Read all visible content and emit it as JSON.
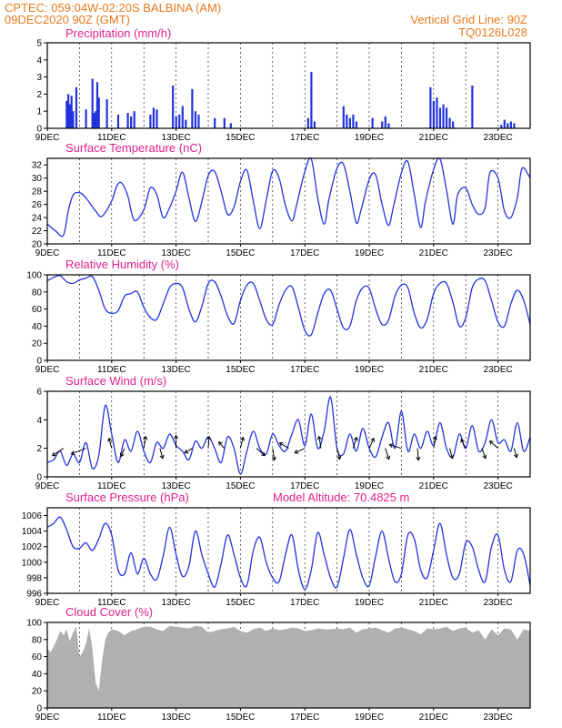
{
  "header": {
    "line1": "CPTEC:   059:04W-02:20S   BALBINA (AM)",
    "line2": "09DEC2020 90Z (GMT)",
    "vgrid": "Vertical Grid Line: 90Z",
    "code": "TQ0126L028"
  },
  "colors": {
    "header": "#e87a1c",
    "title": "#e0208c",
    "line": "#2233dd",
    "cloud": "#b0b0b0"
  },
  "chart_data": [
    {
      "id": "precip",
      "type": "bar",
      "title": "Precipitation (mm/h)",
      "ylim": [
        0,
        5
      ],
      "yticks": [
        0,
        1,
        2,
        3,
        4,
        5
      ],
      "x_unit": "days since 09DEC2020 00Z",
      "x": [
        0.6,
        0.65,
        0.7,
        0.75,
        0.8,
        0.9,
        1.2,
        1.4,
        1.45,
        1.5,
        1.55,
        1.6,
        1.85,
        2.2,
        2.5,
        2.6,
        2.7,
        3.2,
        3.3,
        3.4,
        3.9,
        4.0,
        4.1,
        4.2,
        4.3,
        4.5,
        4.6,
        4.7,
        5.2,
        5.5,
        5.7,
        8.1,
        8.2,
        8.3,
        9.2,
        9.3,
        9.4,
        9.5,
        9.6,
        10.1,
        10.4,
        10.5,
        10.6,
        11.9,
        12.0,
        12.1,
        12.2,
        12.3,
        12.4,
        12.5,
        12.6,
        13.2,
        14.1,
        14.2,
        14.3,
        14.4,
        14.5
      ],
      "values": [
        1.6,
        2.0,
        1.4,
        1.9,
        1.0,
        2.4,
        1.1,
        2.9,
        0.9,
        1.0,
        2.7,
        1.8,
        1.7,
        0.8,
        0.9,
        0.7,
        1.0,
        0.8,
        1.2,
        1.1,
        2.5,
        0.7,
        0.8,
        1.3,
        0.5,
        2.3,
        1.0,
        0.8,
        0.6,
        0.6,
        0.3,
        0.6,
        3.3,
        0.4,
        1.3,
        0.8,
        0.6,
        0.8,
        0.4,
        0.6,
        0.4,
        0.7,
        0.3,
        2.4,
        1.6,
        1.8,
        1.2,
        1.4,
        1.2,
        0.6,
        0.4,
        2.5,
        0.2,
        0.5,
        0.3,
        0.4,
        0.3
      ],
      "xticks": [
        "9DEC",
        "11DEC",
        "13DEC",
        "15DEC",
        "17DEC",
        "19DEC",
        "21DEC",
        "23DEC"
      ]
    },
    {
      "id": "temp",
      "type": "line",
      "title": "Surface Temperature (nC)",
      "ylim": [
        20,
        33
      ],
      "yticks": [
        20,
        22,
        24,
        26,
        28,
        30,
        32
      ],
      "x_unit": "days since 09DEC2020 00Z",
      "x": [
        0.0,
        0.25,
        0.5,
        0.65,
        0.8,
        1.0,
        1.2,
        1.5,
        1.7,
        2.0,
        2.15,
        2.3,
        2.5,
        2.7,
        3.0,
        3.2,
        3.4,
        3.6,
        3.8,
        4.0,
        4.2,
        4.4,
        4.6,
        4.8,
        5.0,
        5.2,
        5.4,
        5.6,
        5.8,
        6.0,
        6.2,
        6.4,
        6.6,
        6.8,
        7.0,
        7.2,
        7.4,
        7.6,
        7.75,
        8.0,
        8.2,
        8.4,
        8.6,
        8.75,
        9.0,
        9.2,
        9.4,
        9.6,
        9.75,
        10.0,
        10.2,
        10.4,
        10.6,
        10.75,
        11.0,
        11.2,
        11.4,
        11.6,
        11.75,
        12.0,
        12.2,
        12.4,
        12.6,
        12.75,
        13.0,
        13.2,
        13.4,
        13.6,
        13.75,
        14.0,
        14.2,
        14.4,
        14.6,
        14.75,
        15.0
      ],
      "values": [
        23.0,
        22.0,
        21.3,
        25.0,
        27.4,
        27.8,
        27.0,
        25.0,
        24.2,
        26.5,
        28.7,
        29.3,
        27.3,
        23.6,
        25.2,
        28.5,
        27.5,
        24.0,
        25.5,
        28.0,
        30.9,
        27.0,
        23.4,
        26.4,
        30.4,
        31.0,
        28.0,
        24.5,
        25.6,
        29.5,
        31.2,
        26.5,
        22.3,
        26.6,
        31.1,
        30.0,
        25.8,
        23.5,
        26.0,
        31.0,
        32.9,
        27.0,
        23.0,
        26.8,
        31.5,
        32.1,
        28.0,
        23.2,
        25.2,
        29.8,
        30.5,
        26.0,
        22.8,
        25.6,
        30.8,
        32.5,
        27.5,
        22.5,
        26.5,
        31.3,
        32.9,
        28.2,
        23.0,
        27.5,
        28.5,
        26.0,
        24.5,
        25.5,
        30.8,
        30.0,
        25.0,
        24.0,
        27.0,
        31.5,
        30.0
      ],
      "xticks": [
        "9DEC",
        "11DEC",
        "13DEC",
        "15DEC",
        "17DEC",
        "19DEC",
        "21DEC",
        "23DEC"
      ]
    },
    {
      "id": "rh",
      "type": "line",
      "title": "Relative Humidity (%)",
      "ylim": [
        0,
        100
      ],
      "yticks": [
        0,
        20,
        40,
        60,
        80,
        100
      ],
      "x_unit": "days since 09DEC2020 00Z",
      "x": [
        0.0,
        0.2,
        0.4,
        0.6,
        0.8,
        1.0,
        1.2,
        1.4,
        1.6,
        1.8,
        2.0,
        2.2,
        2.4,
        2.6,
        2.8,
        3.0,
        3.2,
        3.4,
        3.6,
        3.8,
        4.0,
        4.2,
        4.4,
        4.6,
        4.8,
        5.0,
        5.2,
        5.4,
        5.6,
        5.8,
        6.0,
        6.2,
        6.4,
        6.6,
        6.8,
        7.0,
        7.2,
        7.4,
        7.6,
        7.8,
        8.0,
        8.2,
        8.4,
        8.6,
        8.8,
        9.0,
        9.2,
        9.4,
        9.6,
        9.8,
        10.0,
        10.2,
        10.4,
        10.6,
        10.8,
        11.0,
        11.2,
        11.4,
        11.6,
        11.8,
        12.0,
        12.2,
        12.4,
        12.6,
        12.8,
        13.0,
        13.2,
        13.4,
        13.6,
        13.8,
        14.0,
        14.2,
        14.4,
        14.6,
        14.8,
        15.0
      ],
      "values": [
        93,
        97,
        99,
        92,
        90,
        94,
        96,
        98,
        82,
        60,
        55,
        58,
        75,
        78,
        80,
        62,
        50,
        48,
        66,
        85,
        90,
        85,
        60,
        45,
        63,
        90,
        92,
        75,
        52,
        43,
        70,
        88,
        90,
        70,
        48,
        42,
        65,
        82,
        86,
        62,
        35,
        30,
        55,
        78,
        82,
        60,
        38,
        40,
        70,
        85,
        84,
        60,
        42,
        47,
        75,
        88,
        85,
        55,
        38,
        48,
        78,
        90,
        90,
        68,
        40,
        50,
        85,
        95,
        93,
        70,
        45,
        40,
        66,
        82,
        70,
        42
      ],
      "xticks": [
        "9DEC",
        "11DEC",
        "13DEC",
        "15DEC",
        "17DEC",
        "19DEC",
        "21DEC",
        "23DEC"
      ]
    },
    {
      "id": "wind",
      "type": "line",
      "title": "Surface Wind (m/s)",
      "ylim": [
        0,
        6
      ],
      "yticks": [
        0,
        2,
        4,
        6
      ],
      "x_unit": "days since 09DEC2020 00Z",
      "x": [
        0.0,
        0.2,
        0.4,
        0.6,
        0.8,
        1.0,
        1.2,
        1.4,
        1.6,
        1.8,
        2.0,
        2.2,
        2.4,
        2.6,
        2.8,
        3.0,
        3.2,
        3.4,
        3.6,
        3.8,
        4.0,
        4.2,
        4.4,
        4.6,
        4.8,
        5.0,
        5.2,
        5.4,
        5.6,
        5.8,
        6.0,
        6.2,
        6.4,
        6.6,
        6.8,
        7.0,
        7.2,
        7.4,
        7.6,
        7.8,
        8.0,
        8.2,
        8.4,
        8.6,
        8.8,
        9.0,
        9.2,
        9.4,
        9.6,
        9.8,
        10.0,
        10.2,
        10.4,
        10.6,
        10.8,
        11.0,
        11.2,
        11.4,
        11.6,
        11.8,
        12.0,
        12.2,
        12.4,
        12.6,
        12.8,
        13.0,
        13.2,
        13.4,
        13.6,
        13.8,
        14.0,
        14.2,
        14.4,
        14.6,
        14.8,
        15.0
      ],
      "values": [
        1.0,
        1.2,
        1.8,
        0.8,
        1.6,
        1.0,
        2.4,
        0.6,
        1.5,
        5.0,
        3.0,
        1.0,
        2.6,
        1.8,
        3.2,
        1.8,
        1.0,
        2.4,
        2.0,
        3.0,
        2.2,
        1.8,
        1.2,
        2.5,
        2.0,
        2.8,
        2.0,
        1.0,
        2.8,
        2.0,
        0.2,
        1.8,
        3.2,
        2.0,
        1.6,
        3.0,
        2.2,
        1.8,
        3.0,
        4.0,
        2.2,
        4.4,
        2.0,
        3.2,
        5.6,
        2.0,
        1.6,
        3.0,
        1.8,
        3.4,
        2.0,
        1.4,
        2.8,
        3.8,
        2.0,
        4.6,
        1.8,
        3.0,
        2.0,
        3.2,
        2.2,
        3.8,
        2.0,
        1.4,
        3.0,
        2.0,
        3.6,
        1.8,
        2.4,
        4.0,
        2.4,
        2.6,
        1.8,
        3.8,
        1.8,
        2.8
      ],
      "vectors": [
        {
          "t": 0.5,
          "u": -1.2,
          "v": -0.8
        },
        {
          "t": 1.2,
          "u": -1.6,
          "v": -0.6
        },
        {
          "t": 2.0,
          "u": -0.3,
          "v": 1.1
        },
        {
          "t": 2.4,
          "u": -0.4,
          "v": -0.9
        },
        {
          "t": 3.0,
          "u": 0.2,
          "v": 1.3
        },
        {
          "t": 3.5,
          "u": 0.3,
          "v": -1.1
        },
        {
          "t": 4.0,
          "u": 0.0,
          "v": 1.4
        },
        {
          "t": 4.5,
          "u": -0.8,
          "v": -0.5
        },
        {
          "t": 5.0,
          "u": 0.1,
          "v": 1.3
        },
        {
          "t": 5.5,
          "u": -0.6,
          "v": 0.7
        },
        {
          "t": 6.0,
          "u": 0.3,
          "v": 1.2
        },
        {
          "t": 6.5,
          "u": 0.9,
          "v": -0.8
        },
        {
          "t": 7.0,
          "u": 0.2,
          "v": -1.3
        },
        {
          "t": 7.5,
          "u": -1.0,
          "v": 0.6
        },
        {
          "t": 8.0,
          "u": -1.1,
          "v": -0.5
        },
        {
          "t": 8.5,
          "u": -0.2,
          "v": 1.3
        },
        {
          "t": 9.0,
          "u": 0.3,
          "v": -1.2
        },
        {
          "t": 9.5,
          "u": 0.4,
          "v": 1.2
        },
        {
          "t": 10.0,
          "u": 0.5,
          "v": 1.1
        },
        {
          "t": 10.5,
          "u": 0.4,
          "v": -1.2
        },
        {
          "t": 11.0,
          "u": -1.3,
          "v": 0.4
        },
        {
          "t": 11.5,
          "u": 0.1,
          "v": -1.3
        },
        {
          "t": 12.0,
          "u": 0.2,
          "v": 1.3
        },
        {
          "t": 12.5,
          "u": 0.3,
          "v": -1.1
        },
        {
          "t": 13.0,
          "u": -0.5,
          "v": 1.0
        },
        {
          "t": 13.5,
          "u": 0.4,
          "v": -1.1
        },
        {
          "t": 14.0,
          "u": -0.9,
          "v": 0.8
        },
        {
          "t": 14.5,
          "u": 0.3,
          "v": -1.0
        }
      ],
      "xticks": [
        "9DEC",
        "11DEC",
        "13DEC",
        "15DEC",
        "17DEC",
        "19DEC",
        "21DEC",
        "23DEC"
      ]
    },
    {
      "id": "pres",
      "type": "line",
      "title": "Surface Pressure (hPa)",
      "annotation": "Model Altitude: 70.4825 m",
      "ylim": [
        996,
        1007
      ],
      "yticks": [
        996,
        998,
        1000,
        1002,
        1004,
        1006
      ],
      "x_unit": "days since 09DEC2020 00Z",
      "x": [
        0.0,
        0.2,
        0.4,
        0.6,
        0.8,
        1.0,
        1.2,
        1.4,
        1.6,
        1.8,
        2.0,
        2.2,
        2.4,
        2.6,
        2.8,
        3.0,
        3.2,
        3.4,
        3.6,
        3.8,
        4.0,
        4.2,
        4.4,
        4.6,
        4.8,
        5.0,
        5.2,
        5.4,
        5.6,
        5.8,
        6.0,
        6.2,
        6.4,
        6.6,
        6.8,
        7.0,
        7.2,
        7.4,
        7.6,
        7.8,
        8.0,
        8.2,
        8.4,
        8.6,
        8.8,
        9.0,
        9.2,
        9.4,
        9.6,
        9.8,
        10.0,
        10.2,
        10.4,
        10.6,
        10.8,
        11.0,
        11.2,
        11.4,
        11.6,
        11.8,
        12.0,
        12.2,
        12.4,
        12.6,
        12.8,
        13.0,
        13.2,
        13.4,
        13.6,
        13.8,
        14.0,
        14.2,
        14.4,
        14.6,
        14.8,
        15.0
      ],
      "values": [
        1004.5,
        1005.0,
        1005.8,
        1004.2,
        1002.0,
        1001.8,
        1002.5,
        1001.5,
        1003.0,
        1005.0,
        1003.5,
        999.0,
        998.5,
        1001.2,
        998.5,
        1000.5,
        998.5,
        997.8,
        1000.8,
        1004.5,
        1001.0,
        998.2,
        999.5,
        1004.0,
        1001.0,
        998.5,
        996.8,
        999.8,
        1003.5,
        1001.0,
        998.0,
        997.0,
        1001.5,
        1003.2,
        1000.0,
        998.0,
        997.5,
        1001.0,
        1003.5,
        999.0,
        996.5,
        999.0,
        1003.8,
        1001.0,
        998.0,
        996.8,
        1000.5,
        1004.2,
        1001.0,
        998.0,
        997.0,
        1000.8,
        1004.0,
        1000.5,
        997.5,
        998.5,
        1003.5,
        1003.0,
        999.0,
        998.0,
        1001.5,
        1005.0,
        1001.0,
        998.0,
        998.5,
        1002.5,
        1002.0,
        999.0,
        997.5,
        1002.0,
        1003.5,
        999.0,
        997.5,
        1001.5,
        1001.0,
        997.0
      ],
      "xticks": [
        "9DEC",
        "11DEC",
        "13DEC",
        "15DEC",
        "17DEC",
        "19DEC",
        "21DEC",
        "23DEC"
      ]
    },
    {
      "id": "cloud",
      "type": "area",
      "title": "Cloud Cover (%)",
      "ylim": [
        0,
        100
      ],
      "yticks": [
        0,
        20,
        40,
        60,
        80,
        100
      ],
      "x_unit": "days since 09DEC2020 00Z",
      "x": [
        0.0,
        0.1,
        0.2,
        0.3,
        0.4,
        0.5,
        0.6,
        0.7,
        0.8,
        0.9,
        1.0,
        1.1,
        1.2,
        1.3,
        1.4,
        1.5,
        1.6,
        1.7,
        1.8,
        1.9,
        2.0,
        2.2,
        2.4,
        2.6,
        2.8,
        3.0,
        3.2,
        3.4,
        3.6,
        3.8,
        4.0,
        4.2,
        4.4,
        4.6,
        4.8,
        5.0,
        5.2,
        5.4,
        5.6,
        5.8,
        6.0,
        6.2,
        6.4,
        6.6,
        6.8,
        7.0,
        7.2,
        7.4,
        7.6,
        7.8,
        8.0,
        8.2,
        8.4,
        8.6,
        8.8,
        9.0,
        9.2,
        9.4,
        9.6,
        9.8,
        10.0,
        10.2,
        10.4,
        10.6,
        10.8,
        11.0,
        11.2,
        11.4,
        11.6,
        11.8,
        12.0,
        12.2,
        12.4,
        12.6,
        12.8,
        13.0,
        13.2,
        13.4,
        13.6,
        13.8,
        14.0,
        14.2,
        14.4,
        14.6,
        14.8,
        15.0
      ],
      "values": [
        70,
        65,
        72,
        80,
        90,
        85,
        92,
        78,
        88,
        95,
        60,
        65,
        75,
        93,
        70,
        30,
        20,
        55,
        80,
        88,
        92,
        90,
        85,
        90,
        92,
        95,
        95,
        92,
        90,
        96,
        95,
        94,
        93,
        96,
        95,
        88,
        90,
        92,
        93,
        95,
        90,
        88,
        92,
        94,
        90,
        93,
        91,
        92,
        94,
        93,
        90,
        91,
        93,
        92,
        92,
        93,
        92,
        94,
        88,
        92,
        93,
        94,
        91,
        88,
        93,
        94,
        92,
        90,
        86,
        93,
        92,
        93,
        95,
        90,
        93,
        94,
        88,
        91,
        80,
        92,
        85,
        93,
        92,
        80,
        92,
        90
      ],
      "xticks": [
        "9DEC",
        "11DEC",
        "13DEC",
        "15DEC",
        "17DEC",
        "19DEC",
        "21DEC",
        "23DEC"
      ]
    }
  ]
}
